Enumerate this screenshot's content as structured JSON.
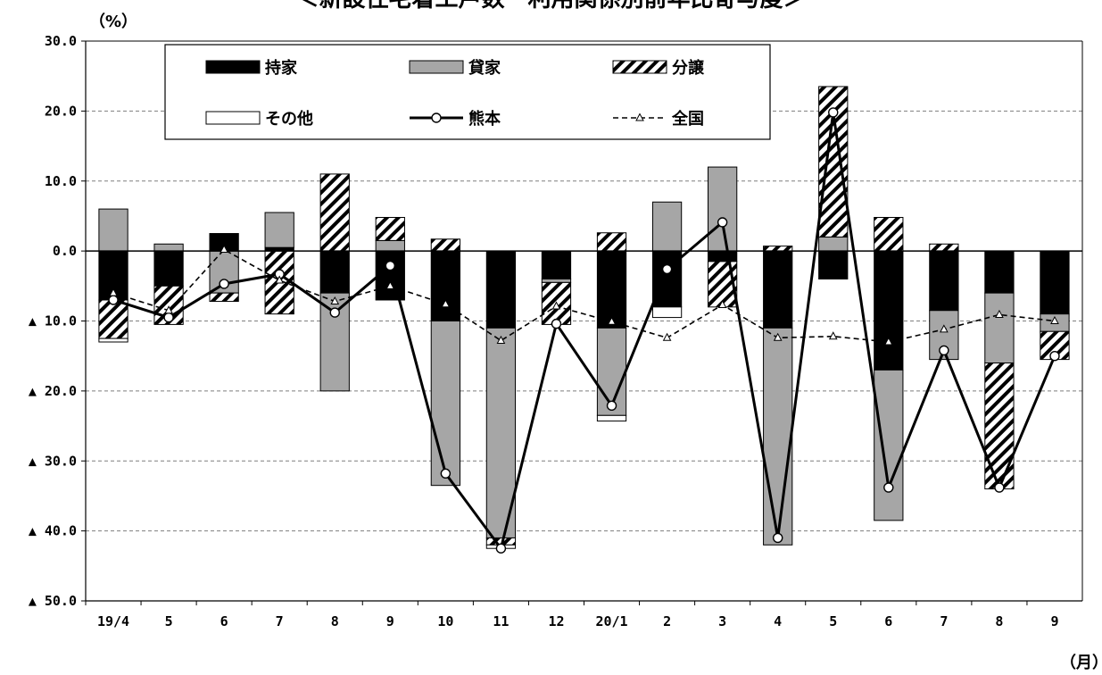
{
  "chart_data": {
    "type": "bar",
    "title": "＜新設住宅着工戸数　利用関係別前年比寄与度＞",
    "ylabel": "（%）",
    "xlabel": "（月）",
    "ylim": [
      -50,
      30
    ],
    "yticks": [
      30,
      20,
      10,
      0,
      -10,
      -20,
      -30,
      -40,
      -50
    ],
    "ytick_labels": [
      "30.0",
      "20.0",
      "10.0",
      "0.0",
      "▲ 10.0",
      "▲ 20.0",
      "▲ 30.0",
      "▲ 40.0",
      "▲ 50.0"
    ],
    "categories": [
      "19/4",
      "5",
      "6",
      "7",
      "8",
      "9",
      "10",
      "11",
      "12",
      "20/1",
      "2",
      "3",
      "4",
      "5",
      "6",
      "7",
      "8",
      "9"
    ],
    "stacked": true,
    "grid": true,
    "legend": "top-left",
    "series": [
      {
        "name": "持家",
        "kind": "bar",
        "color": "#000000",
        "pattern": "solid",
        "values": [
          -7,
          -5,
          2.5,
          0.5,
          -6,
          -7,
          -10,
          -11,
          -4,
          -11,
          -8,
          -1.5,
          -11,
          -4,
          -17,
          -8.5,
          -6,
          -9
        ]
      },
      {
        "name": "貸家",
        "kind": "bar",
        "color": "#a6a6a6",
        "pattern": "solid",
        "values": [
          6,
          1,
          -6,
          5,
          -14,
          1.5,
          -23.5,
          -30,
          -0.5,
          -12.5,
          7,
          12,
          -31,
          2,
          -21.5,
          -7,
          -10,
          -2.5
        ]
      },
      {
        "name": "分譲",
        "kind": "bar",
        "color": "#000000",
        "pattern": "hatch",
        "values": [
          -5.5,
          -5.5,
          -1.2,
          -9,
          11,
          3.3,
          1.7,
          -1,
          -6,
          2.6,
          0,
          -6.5,
          0.7,
          21.5,
          4.8,
          1,
          -18,
          -4
        ]
      },
      {
        "name": "その他",
        "kind": "bar",
        "color": "#ffffff",
        "pattern": "outline",
        "values": [
          -0.5,
          0,
          0,
          0,
          0,
          0,
          0,
          -0.5,
          0,
          -0.8,
          -1.5,
          0,
          0,
          0,
          0,
          0,
          0,
          0
        ]
      },
      {
        "name": "熊本",
        "kind": "line",
        "style": "solid",
        "marker": "circle",
        "color": "#000000",
        "values": [
          -7,
          -9.5,
          -4.7,
          -3.3,
          -8.8,
          -2.1,
          -31.8,
          -42.5,
          -10.4,
          -22.1,
          -2.6,
          4.1,
          -41,
          19.8,
          -33.8,
          -14.2,
          -33.8,
          -15
        ]
      },
      {
        "name": "全国",
        "kind": "line",
        "style": "dashed",
        "marker": "triangle",
        "color": "#000000",
        "values": [
          -6,
          -8.5,
          0.2,
          -4.2,
          -7.2,
          -5,
          -7.6,
          -12.8,
          -7.9,
          -10.1,
          -12.4,
          -7.7,
          -12.4,
          -12.2,
          -13,
          -11.2,
          -9.1,
          -10
        ]
      }
    ]
  }
}
